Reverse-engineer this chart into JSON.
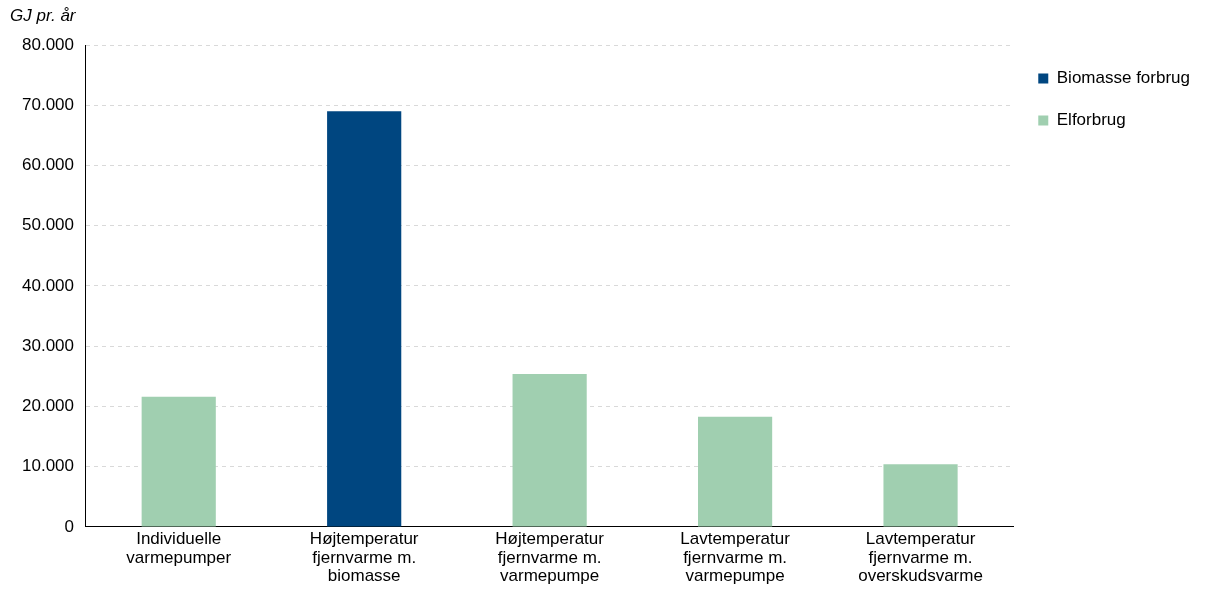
{
  "chart_data": {
    "type": "bar",
    "ylabel": "GJ pr. år",
    "stacked": true,
    "categories": [
      "Individuelle varmepumper",
      "Højtemperatur fjernvarme m. biomasse",
      "Højtemperatur fjernvarme m. varmepumpe",
      "Lavtemperatur fjernvarme m. varmepumpe",
      "Lavtemperatur fjernvarme m. overskudsvarme"
    ],
    "series": [
      {
        "name": "Biomasse forbrug",
        "color": "#004680",
        "values": [
          null,
          69000,
          null,
          null,
          null
        ]
      },
      {
        "name": "Elforbrug",
        "color": "#a0cfb0",
        "values": [
          21600,
          null,
          25400,
          18300,
          10400
        ]
      }
    ],
    "ylim": [
      0,
      80000
    ],
    "yticks": [
      0,
      {
        "value": 10000,
        "label": "10.000"
      },
      {
        "value": 20000,
        "label": "20.000"
      },
      {
        "value": 30000,
        "label": "30.000"
      },
      {
        "value": 40000,
        "label": "40.000"
      },
      {
        "value": 50000,
        "label": "50.000"
      },
      {
        "value": 60000,
        "label": "60.000"
      },
      {
        "value": 70000,
        "label": "70.000"
      },
      {
        "value": 80000,
        "label": "80.000"
      }
    ],
    "grid": "y",
    "legend": "top right"
  }
}
